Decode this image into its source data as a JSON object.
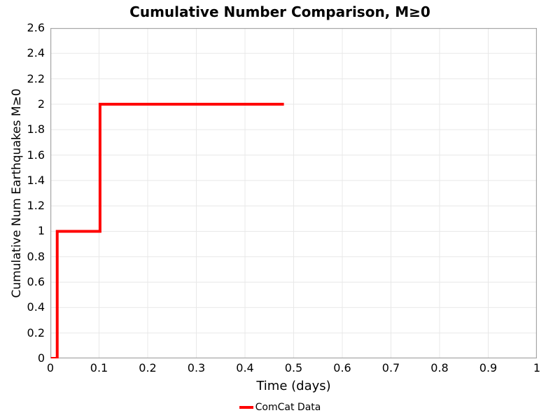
{
  "figure": {
    "background": "#ffffff",
    "spine_color": "#a6a6a6",
    "grid_color": "#e8e8e8",
    "text_color": "#000000"
  },
  "chart_data": {
    "type": "line",
    "subtype": "step",
    "title": "Cumulative Number Comparison, M≥0",
    "xlabel": "Time (days)",
    "ylabel": "Cumulative Num Earthquakes M≥0",
    "xlim": [
      0,
      1
    ],
    "ylim": [
      0,
      2.6
    ],
    "grid": true,
    "x_ticks": {
      "values": [
        0,
        0.1,
        0.2,
        0.3,
        0.4,
        0.5,
        0.6,
        0.7,
        0.8,
        0.9,
        1
      ],
      "labels": [
        "0",
        "0.1",
        "0.2",
        "0.3",
        "0.4",
        "0.5",
        "0.6",
        "0.7",
        "0.8",
        "0.9",
        "1"
      ]
    },
    "y_ticks": {
      "values": [
        0,
        0.2,
        0.4,
        0.6,
        0.8,
        1,
        1.2,
        1.4,
        1.6,
        1.8,
        2,
        2.2,
        2.4,
        2.6
      ],
      "labels": [
        "0",
        "0.2",
        "0.4",
        "0.6",
        "0.8",
        "1",
        "1.2",
        "1.4",
        "1.6",
        "1.8",
        "2",
        "2.2",
        "2.4",
        "2.6"
      ]
    },
    "legend": {
      "position": "bottom-center",
      "entries": [
        {
          "label": "ComCat Data",
          "color": "#ff0000"
        }
      ]
    },
    "series": [
      {
        "name": "ComCat Data",
        "color": "#ff0000",
        "line_width": 4,
        "points": [
          [
            0.001,
            0
          ],
          [
            0.014,
            0
          ],
          [
            0.014,
            1
          ],
          [
            0.102,
            1
          ],
          [
            0.102,
            2
          ],
          [
            0.48,
            2
          ]
        ]
      }
    ]
  }
}
